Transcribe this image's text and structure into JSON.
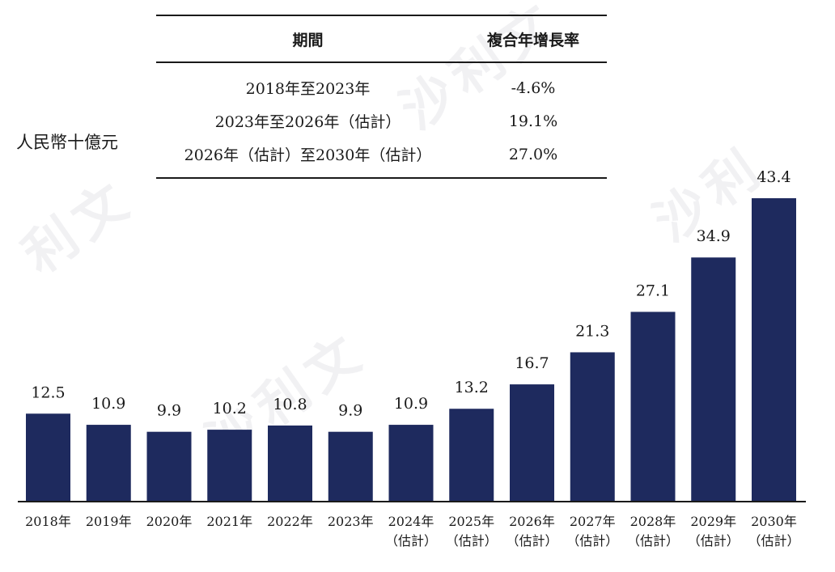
{
  "unit_label": "人民幣十億元",
  "cagr_table": {
    "headers": [
      "期間",
      "複合年增長率"
    ],
    "rows": [
      {
        "period": "2018年至2023年",
        "rate": "-4.6%"
      },
      {
        "period": "2023年至2026年（估計）",
        "rate": "19.1%"
      },
      {
        "period": "2026年（估計）至2030年（估計）",
        "rate": "27.0%"
      }
    ]
  },
  "chart_data": {
    "type": "bar",
    "categories": [
      [
        "2018年"
      ],
      [
        "2019年"
      ],
      [
        "2020年"
      ],
      [
        "2021年"
      ],
      [
        "2022年"
      ],
      [
        "2023年"
      ],
      [
        "2024年",
        "（估計）"
      ],
      [
        "2025年",
        "（估計）"
      ],
      [
        "2026年",
        "（估計）"
      ],
      [
        "2027年",
        "（估計）"
      ],
      [
        "2028年",
        "（估計）"
      ],
      [
        "2029年",
        "（估計）"
      ],
      [
        "2030年",
        "（估計）"
      ]
    ],
    "values": [
      12.5,
      10.9,
      9.9,
      10.2,
      10.8,
      9.9,
      10.9,
      13.2,
      16.7,
      21.3,
      27.1,
      34.9,
      43.4
    ],
    "data_labels": [
      "12.5",
      "10.9",
      "9.9",
      "10.2",
      "10.8",
      "9.9",
      "10.9",
      "13.2",
      "16.7",
      "21.3",
      "27.1",
      "34.9",
      "43.4"
    ],
    "ylabel": "人民幣十億元",
    "ylim": [
      0,
      43.4
    ],
    "bar_color": "#1e2a5e",
    "grid": false
  },
  "watermark_text": [
    "沙",
    "利",
    "文"
  ]
}
